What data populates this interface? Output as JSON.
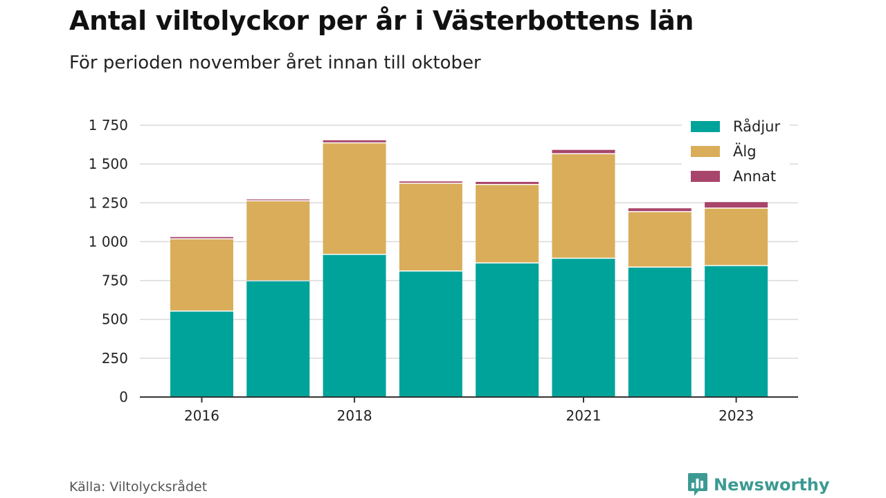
{
  "header": {
    "title": "Antal viltolyckor per år i Västerbottens län",
    "subtitle": "För perioden november året innan till oktober"
  },
  "footer": {
    "source": "Källa: Viltolycksrådet",
    "brand": "Newsworthy",
    "brand_icon": "newsworthy-logo-icon"
  },
  "colors": {
    "radjur": "#00a39a",
    "alg": "#d9ad5a",
    "annat": "#a8456b",
    "grid": "#d9d9d9",
    "axis": "#333333",
    "brand": "#3c9a93"
  },
  "chart_data": {
    "type": "bar",
    "stacked": true,
    "categories": [
      "2016",
      "2017",
      "2018",
      "2019",
      "2020",
      "2021",
      "2022",
      "2023"
    ],
    "x_tick_labels": [
      "2016",
      "",
      "2018",
      "",
      "",
      "2021",
      "",
      "2023"
    ],
    "series": [
      {
        "name": "Rådjur",
        "color": "#00a39a",
        "values": [
          550,
          745,
          915,
          808,
          860,
          890,
          833,
          843
        ]
      },
      {
        "name": "Älg",
        "color": "#d9ad5a",
        "values": [
          465,
          515,
          718,
          565,
          505,
          673,
          357,
          370
        ]
      },
      {
        "name": "Annat",
        "color": "#a8456b",
        "values": [
          15,
          12,
          20,
          15,
          20,
          28,
          25,
          42
        ]
      }
    ],
    "yticks": [
      0,
      250,
      500,
      750,
      1000,
      1250,
      1500,
      1750
    ],
    "ytick_labels": [
      "0",
      "250",
      "500",
      "750",
      "1 000",
      "1 250",
      "1 500",
      "1 750"
    ],
    "ylim": [
      0,
      1750
    ],
    "grid": true,
    "legend_position": "top-right",
    "title": "Antal viltolyckor per år i Västerbottens län",
    "subtitle": "För perioden november året innan till oktober",
    "xlabel": "",
    "ylabel": ""
  }
}
